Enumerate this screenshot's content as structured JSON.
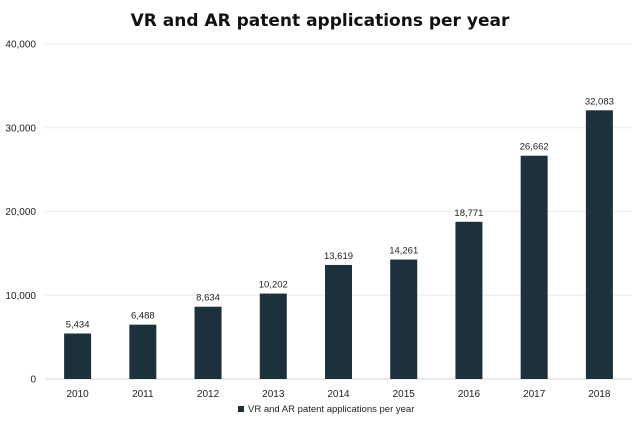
{
  "chart_data": {
    "type": "bar",
    "title": "VR and AR patent applications per year",
    "xlabel": "",
    "ylabel": "",
    "categories": [
      "2010",
      "2011",
      "2012",
      "2013",
      "2014",
      "2015",
      "2016",
      "2017",
      "2018"
    ],
    "series": [
      {
        "name": "VR and AR patent applications per year",
        "values": [
          5434,
          6488,
          8634,
          10202,
          13619,
          14261,
          18771,
          26662,
          32083
        ],
        "value_labels": [
          "5,434",
          "6,488",
          "8,634",
          "10,202",
          "13,619",
          "14,261",
          "18,771",
          "26,662",
          "32,083"
        ],
        "color": "#1c313c"
      }
    ],
    "ylim": [
      0,
      40000
    ],
    "yticks": [
      0,
      10000,
      20000,
      30000,
      40000
    ],
    "ytick_labels": [
      "0",
      "10,000",
      "20,000",
      "30,000",
      "40,000"
    ],
    "grid": true,
    "legend_position": "bottom"
  }
}
